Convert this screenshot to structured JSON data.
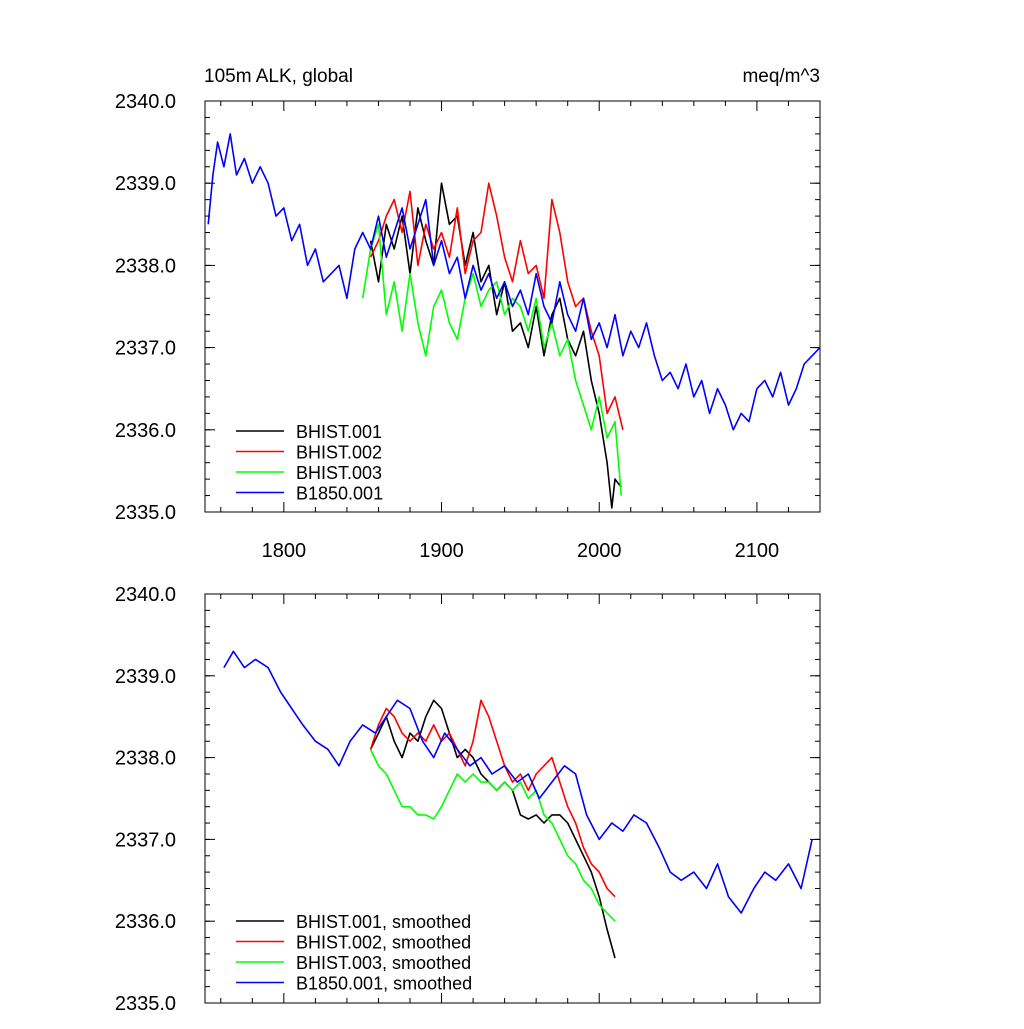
{
  "figure": {
    "title_left": "105m ALK, global",
    "title_right": "meq/m^3"
  },
  "chart_data": [
    {
      "type": "line",
      "title": "105m ALK, global",
      "units": "meq/m^3",
      "xlim": [
        1750,
        2140
      ],
      "ylim": [
        2335.0,
        2340.0
      ],
      "x_ticks": [
        1800,
        1900,
        2000,
        2100
      ],
      "x_tick_labels": [
        "1800",
        "1900",
        "2000",
        "2100"
      ],
      "y_ticks": [
        2335.0,
        2336.0,
        2337.0,
        2338.0,
        2339.0,
        2340.0
      ],
      "y_tick_labels": [
        "2335.0",
        "2336.0",
        "2337.0",
        "2338.0",
        "2339.0",
        "2340.0"
      ],
      "legend_position": "bottom-left",
      "series": [
        {
          "name": "BHIST.001",
          "color": "#000000",
          "x": [
            1855,
            1860,
            1865,
            1870,
            1875,
            1880,
            1885,
            1890,
            1895,
            1900,
            1905,
            1910,
            1915,
            1920,
            1925,
            1930,
            1935,
            1940,
            1945,
            1950,
            1955,
            1960,
            1965,
            1970,
            1975,
            1980,
            1985,
            1990,
            1995,
            2000,
            2005,
            2008,
            2010,
            2014
          ],
          "y": [
            2338.3,
            2337.8,
            2338.5,
            2338.2,
            2338.6,
            2337.9,
            2338.7,
            2338.3,
            2338.0,
            2339.0,
            2338.5,
            2338.6,
            2338.0,
            2338.4,
            2337.8,
            2338.0,
            2337.4,
            2337.8,
            2337.2,
            2337.3,
            2337.0,
            2337.5,
            2336.9,
            2337.4,
            2337.6,
            2337.1,
            2336.9,
            2337.2,
            2336.6,
            2336.2,
            2335.6,
            2335.05,
            2335.4,
            2335.3
          ]
        },
        {
          "name": "BHIST.002",
          "color": "#ff0000",
          "x": [
            1855,
            1860,
            1865,
            1870,
            1875,
            1880,
            1885,
            1890,
            1895,
            1900,
            1905,
            1910,
            1915,
            1920,
            1925,
            1930,
            1935,
            1940,
            1945,
            1950,
            1955,
            1960,
            1965,
            1970,
            1975,
            1980,
            1985,
            1990,
            1995,
            2000,
            2005,
            2010,
            2015
          ],
          "y": [
            2338.1,
            2338.3,
            2338.6,
            2338.8,
            2338.4,
            2338.9,
            2338.0,
            2338.5,
            2338.2,
            2338.4,
            2338.1,
            2338.7,
            2337.9,
            2338.3,
            2338.4,
            2339.0,
            2338.6,
            2338.1,
            2337.8,
            2338.3,
            2337.9,
            2338.0,
            2337.6,
            2338.8,
            2338.4,
            2337.8,
            2337.5,
            2337.6,
            2337.2,
            2336.9,
            2336.2,
            2336.4,
            2336.0
          ]
        },
        {
          "name": "BHIST.003",
          "color": "#00ff00",
          "x": [
            1850,
            1855,
            1860,
            1865,
            1870,
            1875,
            1880,
            1885,
            1890,
            1895,
            1900,
            1905,
            1910,
            1915,
            1920,
            1925,
            1930,
            1935,
            1940,
            1945,
            1950,
            1955,
            1960,
            1965,
            1970,
            1975,
            1980,
            1985,
            1990,
            1995,
            2000,
            2005,
            2010,
            2014
          ],
          "y": [
            2337.6,
            2338.2,
            2338.5,
            2337.4,
            2337.8,
            2337.2,
            2337.9,
            2337.3,
            2336.9,
            2337.5,
            2337.7,
            2337.3,
            2337.1,
            2337.6,
            2337.9,
            2337.5,
            2337.7,
            2337.8,
            2337.4,
            2337.6,
            2337.5,
            2337.2,
            2337.6,
            2337.0,
            2337.3,
            2336.9,
            2337.1,
            2336.6,
            2336.3,
            2336.0,
            2336.4,
            2335.9,
            2336.1,
            2335.2
          ]
        },
        {
          "name": "B1850.001",
          "color": "#0000ff",
          "x": [
            1752,
            1755,
            1758,
            1762,
            1766,
            1770,
            1775,
            1780,
            1785,
            1790,
            1795,
            1800,
            1805,
            1810,
            1815,
            1820,
            1825,
            1830,
            1835,
            1840,
            1845,
            1850,
            1855,
            1860,
            1865,
            1870,
            1875,
            1880,
            1885,
            1890,
            1895,
            1900,
            1905,
            1910,
            1915,
            1920,
            1925,
            1930,
            1935,
            1940,
            1945,
            1950,
            1955,
            1960,
            1965,
            1970,
            1975,
            1980,
            1985,
            1990,
            1995,
            2000,
            2005,
            2010,
            2015,
            2020,
            2025,
            2030,
            2035,
            2040,
            2045,
            2050,
            2055,
            2060,
            2065,
            2070,
            2075,
            2080,
            2085,
            2090,
            2095,
            2100,
            2105,
            2110,
            2115,
            2120,
            2125,
            2130,
            2135,
            2140
          ],
          "y": [
            2338.5,
            2339.1,
            2339.5,
            2339.2,
            2339.6,
            2339.1,
            2339.3,
            2339.0,
            2339.2,
            2339.0,
            2338.6,
            2338.7,
            2338.3,
            2338.5,
            2338.0,
            2338.2,
            2337.8,
            2337.9,
            2338.0,
            2337.6,
            2338.2,
            2338.4,
            2338.2,
            2338.6,
            2338.1,
            2338.4,
            2338.7,
            2338.2,
            2338.5,
            2338.8,
            2338.0,
            2338.3,
            2337.9,
            2338.1,
            2337.6,
            2338.0,
            2337.7,
            2337.9,
            2337.6,
            2337.8,
            2337.5,
            2337.7,
            2337.4,
            2337.9,
            2337.5,
            2337.3,
            2337.8,
            2337.4,
            2337.2,
            2337.6,
            2337.1,
            2337.3,
            2337.0,
            2337.4,
            2336.9,
            2337.2,
            2337.0,
            2337.3,
            2336.9,
            2336.6,
            2336.7,
            2336.5,
            2336.8,
            2336.4,
            2336.6,
            2336.2,
            2336.5,
            2336.3,
            2336.0,
            2336.2,
            2336.1,
            2336.5,
            2336.6,
            2336.4,
            2336.7,
            2336.3,
            2336.5,
            2336.8,
            2336.9,
            2337.0
          ]
        }
      ]
    },
    {
      "type": "line",
      "xlim": [
        1750,
        2140
      ],
      "ylim": [
        2335.0,
        2340.0
      ],
      "y_ticks": [
        2335.0,
        2336.0,
        2337.0,
        2338.0,
        2339.0,
        2340.0
      ],
      "y_tick_labels": [
        "2335.0",
        "2336.0",
        "2337.0",
        "2338.0",
        "2339.0",
        "2340.0"
      ],
      "legend_position": "bottom-left",
      "series": [
        {
          "name": "BHIST.001, smoothed",
          "color": "#000000",
          "x": [
            1855,
            1860,
            1865,
            1870,
            1875,
            1880,
            1885,
            1890,
            1895,
            1900,
            1905,
            1910,
            1915,
            1920,
            1925,
            1930,
            1935,
            1940,
            1945,
            1950,
            1955,
            1960,
            1965,
            1970,
            1975,
            1980,
            1985,
            1990,
            1995,
            2000,
            2005,
            2010
          ],
          "y": [
            2338.1,
            2338.3,
            2338.5,
            2338.2,
            2338.0,
            2338.3,
            2338.2,
            2338.5,
            2338.7,
            2338.6,
            2338.3,
            2338.0,
            2338.1,
            2338.0,
            2337.8,
            2337.7,
            2337.6,
            2337.7,
            2337.6,
            2337.3,
            2337.25,
            2337.3,
            2337.2,
            2337.3,
            2337.3,
            2337.2,
            2337.0,
            2336.8,
            2336.6,
            2336.3,
            2335.9,
            2335.55
          ]
        },
        {
          "name": "BHIST.002, smoothed",
          "color": "#ff0000",
          "x": [
            1855,
            1860,
            1865,
            1870,
            1875,
            1880,
            1885,
            1890,
            1895,
            1900,
            1905,
            1910,
            1915,
            1920,
            1925,
            1930,
            1935,
            1940,
            1945,
            1950,
            1955,
            1960,
            1965,
            1970,
            1975,
            1980,
            1985,
            1990,
            1995,
            2000,
            2005,
            2010
          ],
          "y": [
            2338.1,
            2338.4,
            2338.6,
            2338.5,
            2338.3,
            2338.2,
            2338.3,
            2338.2,
            2338.4,
            2338.2,
            2338.3,
            2338.1,
            2337.9,
            2338.2,
            2338.7,
            2338.5,
            2338.2,
            2337.9,
            2337.7,
            2337.8,
            2337.6,
            2337.8,
            2337.9,
            2338.0,
            2337.7,
            2337.4,
            2337.2,
            2336.9,
            2336.7,
            2336.6,
            2336.4,
            2336.3
          ]
        },
        {
          "name": "BHIST.003, smoothed",
          "color": "#00ff00",
          "x": [
            1855,
            1860,
            1865,
            1870,
            1875,
            1880,
            1885,
            1890,
            1895,
            1900,
            1905,
            1910,
            1915,
            1920,
            1925,
            1930,
            1935,
            1940,
            1945,
            1950,
            1955,
            1960,
            1965,
            1970,
            1975,
            1980,
            1985,
            1990,
            1995,
            2000,
            2005,
            2010
          ],
          "y": [
            2338.1,
            2337.9,
            2337.8,
            2337.6,
            2337.4,
            2337.4,
            2337.3,
            2337.3,
            2337.25,
            2337.4,
            2337.6,
            2337.8,
            2337.7,
            2337.8,
            2337.7,
            2337.7,
            2337.6,
            2337.7,
            2337.6,
            2337.7,
            2337.5,
            2337.6,
            2337.3,
            2337.2,
            2337.0,
            2336.8,
            2336.7,
            2336.5,
            2336.4,
            2336.2,
            2336.1,
            2336.0
          ]
        },
        {
          "name": "B1850.001, smoothed",
          "color": "#0000ff",
          "x": [
            1762,
            1768,
            1775,
            1782,
            1790,
            1798,
            1805,
            1812,
            1820,
            1828,
            1835,
            1842,
            1850,
            1858,
            1865,
            1872,
            1880,
            1888,
            1895,
            1902,
            1910,
            1918,
            1925,
            1932,
            1940,
            1948,
            1955,
            1962,
            1970,
            1978,
            1985,
            1992,
            2000,
            2008,
            2015,
            2022,
            2030,
            2038,
            2045,
            2052,
            2060,
            2068,
            2075,
            2082,
            2090,
            2098,
            2105,
            2112,
            2120,
            2128,
            2135
          ],
          "y": [
            2339.1,
            2339.3,
            2339.1,
            2339.2,
            2339.1,
            2338.8,
            2338.6,
            2338.4,
            2338.2,
            2338.1,
            2337.9,
            2338.2,
            2338.4,
            2338.3,
            2338.5,
            2338.7,
            2338.6,
            2338.2,
            2338.0,
            2338.3,
            2338.1,
            2337.9,
            2338.0,
            2337.8,
            2337.9,
            2337.7,
            2337.8,
            2337.5,
            2337.7,
            2337.9,
            2337.8,
            2337.3,
            2337.0,
            2337.2,
            2337.1,
            2337.3,
            2337.2,
            2336.9,
            2336.6,
            2336.5,
            2336.6,
            2336.4,
            2336.7,
            2336.3,
            2336.1,
            2336.4,
            2336.6,
            2336.5,
            2336.7,
            2336.4,
            2337.0
          ]
        }
      ]
    }
  ]
}
